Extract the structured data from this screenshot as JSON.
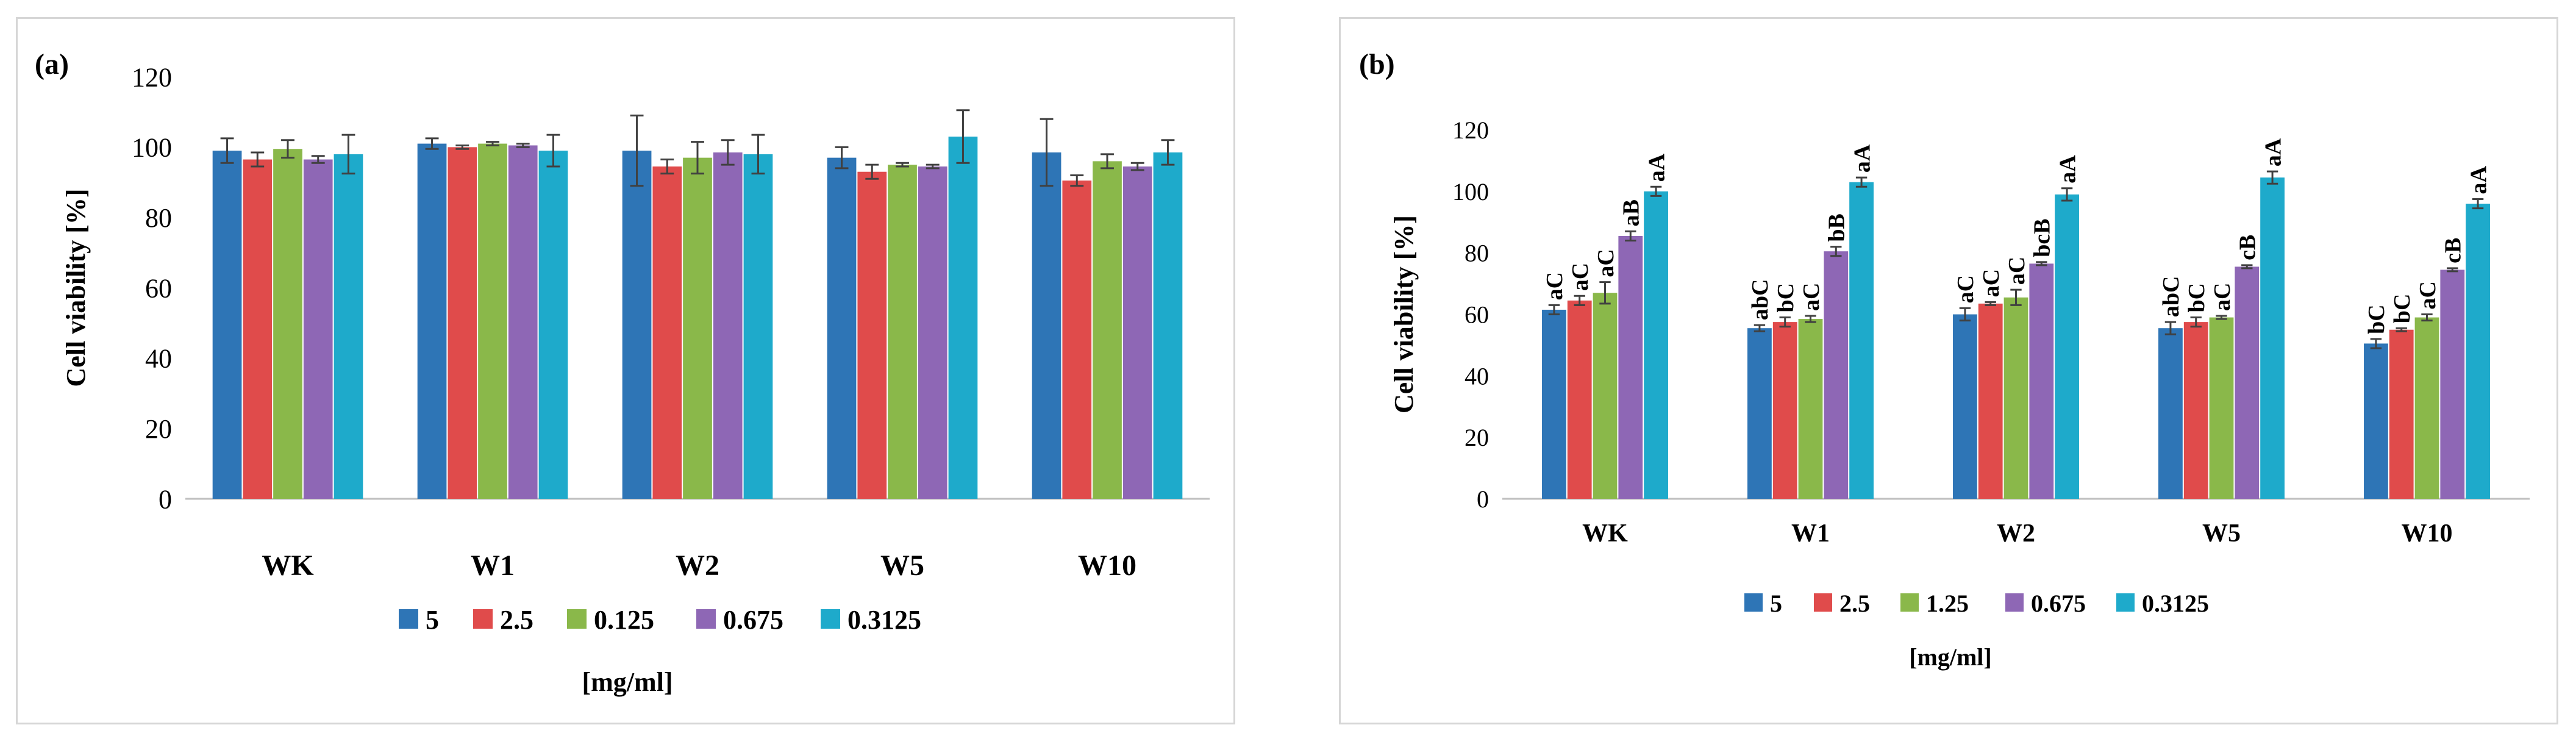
{
  "chart_data": [
    {
      "type": "bar",
      "panel_label": "(a)",
      "ylabel": "Cell viability [%]",
      "xlabel": "[mg/ml]",
      "categories": [
        "WK",
        "W1",
        "W2",
        "W5",
        "W10"
      ],
      "ylim": [
        0,
        120
      ],
      "yticks": [
        "0",
        "20",
        "40",
        "60",
        "80",
        "100",
        "120"
      ],
      "grid": false,
      "legend_position": "bottom",
      "series": [
        {
          "name": "5",
          "color": "#2e75b6",
          "values": [
            99,
            101,
            99,
            97,
            98.5
          ],
          "errors": [
            3.5,
            1.5,
            10,
            3,
            9.5
          ]
        },
        {
          "name": "2.5",
          "color": "#e04b4b",
          "values": [
            96.5,
            100,
            94.5,
            93,
            90.5
          ],
          "errors": [
            2,
            0.5,
            2,
            2,
            1.5
          ]
        },
        {
          "name": "0.125",
          "color": "#8ab84a",
          "values": [
            99.5,
            101,
            97,
            95,
            96
          ],
          "errors": [
            2.5,
            0.5,
            4.5,
            0.5,
            2
          ]
        },
        {
          "name": "0.675",
          "color": "#8e67b5",
          "values": [
            96.5,
            100.5,
            98.5,
            94.5,
            94.5
          ],
          "errors": [
            1,
            0.5,
            3.5,
            0.5,
            1
          ]
        },
        {
          "name": "0.3125",
          "color": "#1eaacb",
          "values": [
            98,
            99,
            98,
            103,
            98.5
          ],
          "errors": [
            5.5,
            4.5,
            5.5,
            7.5,
            3.5
          ]
        }
      ]
    },
    {
      "type": "bar",
      "panel_label": "(b)",
      "ylabel": "Cell viability [%]",
      "xlabel": "[mg/ml]",
      "categories": [
        "WK",
        "W1",
        "W2",
        "W5",
        "W10"
      ],
      "ylim": [
        0,
        120
      ],
      "yticks": [
        "0",
        "20",
        "40",
        "60",
        "80",
        "100",
        "120"
      ],
      "grid": false,
      "legend_position": "bottom",
      "series": [
        {
          "name": "5",
          "color": "#2e75b6",
          "values": [
            61.5,
            55.5,
            60,
            55.5,
            50.5
          ],
          "errors": [
            1.5,
            1,
            2,
            2,
            1.5
          ],
          "labels": [
            "aC",
            "abC",
            "aC",
            "abC",
            "bC"
          ]
        },
        {
          "name": "2.5",
          "color": "#e04b4b",
          "values": [
            64.5,
            57.5,
            63.5,
            57.5,
            55
          ],
          "errors": [
            1.5,
            1.5,
            0.5,
            1.5,
            0.5
          ],
          "labels": [
            "aC",
            "bC",
            "aC",
            "bC",
            "bC"
          ]
        },
        {
          "name": "1.25",
          "color": "#8ab84a",
          "values": [
            67,
            58.5,
            65.5,
            59,
            59
          ],
          "errors": [
            3.5,
            1,
            2.5,
            0.5,
            1
          ],
          "labels": [
            "aC",
            "aC",
            "aC",
            "aC",
            "aC"
          ]
        },
        {
          "name": "0.675",
          "color": "#8e67b5",
          "values": [
            85.5,
            80.5,
            76.5,
            75.5,
            74.5
          ],
          "errors": [
            1.5,
            1.5,
            0.5,
            0.5,
            0.5
          ],
          "labels": [
            "aB",
            "bB",
            "bcB",
            "cB",
            "cB"
          ]
        },
        {
          "name": "0.3125",
          "color": "#1eaacb",
          "values": [
            100,
            103,
            99,
            104.5,
            96
          ],
          "errors": [
            1.5,
            1.5,
            2,
            2,
            1.5
          ],
          "labels": [
            "aA",
            "aA",
            "aA",
            "aA",
            "aA"
          ]
        }
      ]
    }
  ]
}
